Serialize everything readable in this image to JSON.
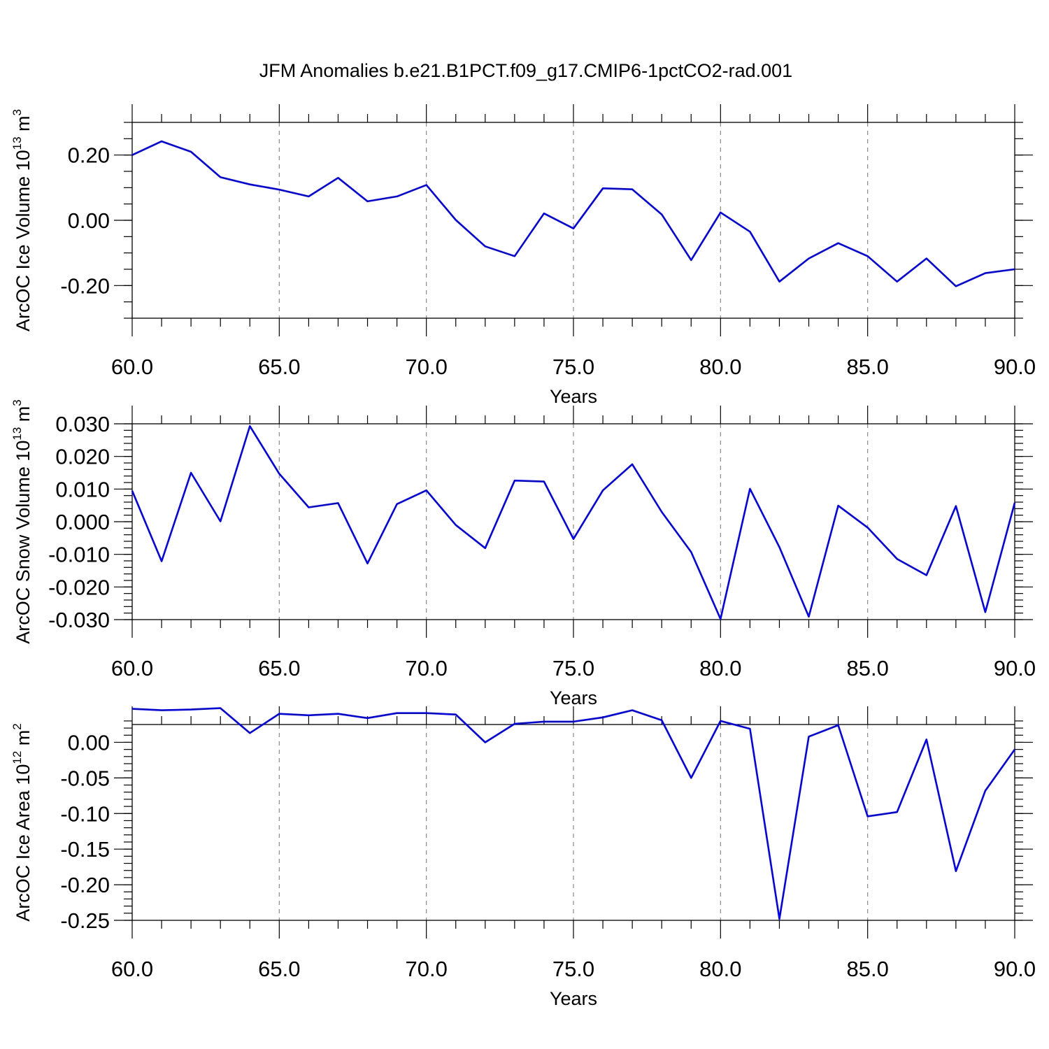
{
  "figure": {
    "title": "JFM Anomalies b.e21.B1PCT.f09_g17.CMIP6-1pctCO2-rad.001"
  },
  "colors": {
    "series": "#0000ff",
    "axes": "#000000",
    "grid": "#888888"
  },
  "chart_data": [
    {
      "type": "line",
      "xlabel": "Years",
      "ylabel": {
        "base": "ArcOC Ice Volume 10",
        "exp": "13",
        "unit": " m",
        "unit_exp": "3"
      },
      "xlim": [
        60,
        90
      ],
      "ylim": [
        -0.3,
        0.3
      ],
      "x_ticks": [
        "60.0",
        "65.0",
        "70.0",
        "75.0",
        "80.0",
        "85.0",
        "90.0"
      ],
      "x_tick_values": [
        60,
        65,
        70,
        75,
        80,
        85,
        90
      ],
      "y_ticks": [
        "0.20",
        "0.00",
        "-0.20"
      ],
      "y_tick_values": [
        0.2,
        0.0,
        -0.2
      ],
      "y_minor_step": 0.05,
      "grid": "vertical-dashed",
      "x": [
        60,
        61,
        62,
        63,
        64,
        65,
        66,
        67,
        68,
        69,
        70,
        71,
        72,
        73,
        74,
        75,
        76,
        77,
        78,
        79,
        80,
        81,
        82,
        83,
        84,
        85,
        86,
        87,
        88,
        89,
        90
      ],
      "series": [
        {
          "values": [
            0.2,
            0.242,
            0.21,
            0.132,
            0.11,
            0.094,
            0.073,
            0.13,
            0.058,
            0.073,
            0.108,
            0.001,
            -0.08,
            -0.11,
            0.021,
            -0.025,
            0.098,
            0.095,
            0.018,
            -0.122,
            0.024,
            -0.035,
            -0.188,
            -0.117,
            -0.07,
            -0.11,
            -0.188,
            -0.117,
            -0.202,
            -0.162,
            -0.15
          ]
        }
      ]
    },
    {
      "type": "line",
      "xlabel": "Years",
      "ylabel": {
        "base": "ArcOC Snow Volume 10",
        "exp": "13",
        "unit": " m",
        "unit_exp": "3"
      },
      "xlim": [
        60,
        90
      ],
      "ylim": [
        -0.03,
        0.03
      ],
      "x_ticks": [
        "60.0",
        "65.0",
        "70.0",
        "75.0",
        "80.0",
        "85.0",
        "90.0"
      ],
      "x_tick_values": [
        60,
        65,
        70,
        75,
        80,
        85,
        90
      ],
      "y_ticks": [
        "0.030",
        "0.020",
        "0.010",
        "0.000",
        "-0.010",
        "-0.020",
        "-0.030"
      ],
      "y_tick_values": [
        0.03,
        0.02,
        0.01,
        0.0,
        -0.01,
        -0.02,
        -0.03
      ],
      "y_minor_step": 0.002,
      "grid": "vertical-dashed",
      "x": [
        60,
        61,
        62,
        63,
        64,
        65,
        66,
        67,
        68,
        69,
        70,
        71,
        72,
        73,
        74,
        75,
        76,
        77,
        78,
        79,
        80,
        81,
        82,
        83,
        84,
        85,
        86,
        87,
        88,
        89,
        90
      ],
      "series": [
        {
          "values": [
            0.0095,
            -0.0121,
            0.015,
            0.0001,
            0.0293,
            0.0147,
            0.0044,
            0.0057,
            -0.0128,
            0.0054,
            0.0096,
            -0.001,
            -0.0081,
            0.0126,
            0.0123,
            -0.0053,
            0.0096,
            0.0176,
            0.003,
            -0.0093,
            -0.0298,
            0.0101,
            -0.0078,
            -0.0291,
            0.0049,
            -0.0018,
            -0.0114,
            -0.0164,
            0.0048,
            -0.0277,
            0.0058
          ]
        }
      ]
    },
    {
      "type": "line",
      "xlabel": "Years",
      "ylabel": {
        "base": "ArcOC Ice Area 10",
        "exp": "12",
        "unit": " m",
        "unit_exp": "2"
      },
      "xlim": [
        60,
        90
      ],
      "ylim": [
        -0.25,
        0.025
      ],
      "x_ticks": [
        "60.0",
        "65.0",
        "70.0",
        "75.0",
        "80.0",
        "85.0",
        "90.0"
      ],
      "x_tick_values": [
        60,
        65,
        70,
        75,
        80,
        85,
        90
      ],
      "y_ticks": [
        "0.00",
        "-0.05",
        "-0.10",
        "-0.15",
        "-0.20",
        "-0.25"
      ],
      "y_tick_values": [
        0.0,
        -0.05,
        -0.1,
        -0.15,
        -0.2,
        -0.25
      ],
      "y_minor_step": 0.01,
      "grid": "vertical-dashed",
      "x": [
        60,
        61,
        62,
        63,
        64,
        65,
        66,
        67,
        68,
        69,
        70,
        71,
        72,
        73,
        74,
        75,
        76,
        77,
        78,
        79,
        80,
        81,
        82,
        83,
        84,
        85,
        86,
        87,
        88,
        89,
        90
      ],
      "series": [
        {
          "values": [
            0.047,
            0.045,
            0.046,
            0.048,
            0.013,
            0.04,
            0.038,
            0.04,
            0.034,
            0.041,
            0.041,
            0.039,
            0.0,
            0.026,
            0.029,
            0.029,
            0.035,
            0.045,
            0.031,
            -0.05,
            0.03,
            0.019,
            -0.248,
            0.008,
            0.024,
            -0.104,
            -0.098,
            0.004,
            -0.181,
            -0.068,
            -0.01
          ]
        }
      ]
    }
  ]
}
